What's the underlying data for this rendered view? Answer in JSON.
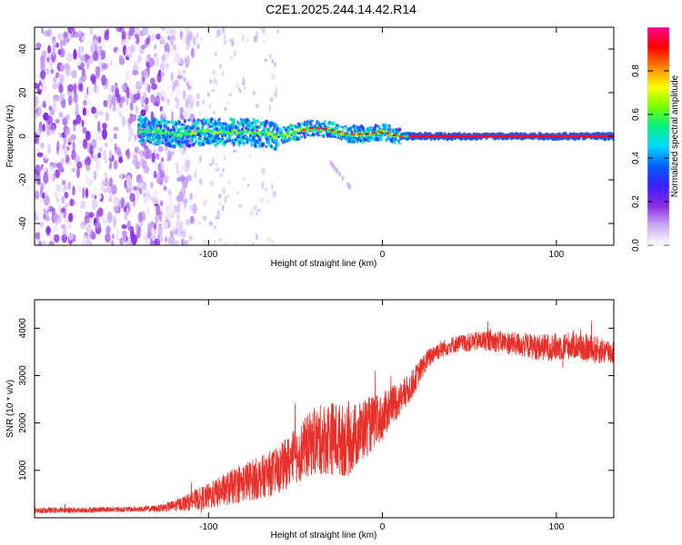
{
  "title": "C2E1.2025.244.14.42.R14",
  "colors": {
    "axis": "#000000",
    "snr_line": "#e8302a",
    "background": "#ffffff"
  },
  "chart_data": [
    {
      "type": "heatmap",
      "name": "spectrogram",
      "xlabel": "Height of straight line (km)",
      "ylabel": "Frequency (Hz)",
      "xlim": [
        -200,
        133
      ],
      "ylim": [
        -50,
        50
      ],
      "xticks": [
        -100,
        0,
        100
      ],
      "yticks": [
        -40,
        -20,
        0,
        20,
        40
      ],
      "colorbar": {
        "label": "Normalized spectral amplitude",
        "range": [
          0.0,
          1.0
        ],
        "ticks": [
          "0.0",
          "0.2",
          "0.4",
          "0.6",
          "0.8"
        ],
        "colormap": [
          "#ffffff",
          "#c9a9f5",
          "#8a2be2",
          "#3a1fff",
          "#0060ff",
          "#00d8ff",
          "#00f080",
          "#7aff00",
          "#ffff00",
          "#ff8000",
          "#ff0000",
          "#ff0090"
        ]
      },
      "features": [
        {
          "description": "broadband noise",
          "x_range": [
            -200,
            -108
          ],
          "freq_range": [
            -50,
            50
          ],
          "amplitude": 0.15
        },
        {
          "description": "faint sparse noise",
          "x_range": [
            -108,
            -60
          ],
          "freq_range": [
            -50,
            50
          ],
          "amplitude": 0.05
        },
        {
          "description": "signal trace",
          "points": [
            [
              -140,
              3
            ],
            [
              -120,
              1
            ],
            [
              -100,
              2
            ],
            [
              -80,
              2
            ],
            [
              -60,
              0
            ],
            [
              -50,
              2
            ],
            [
              -40,
              4
            ],
            [
              -30,
              3
            ],
            [
              -20,
              1
            ],
            [
              -10,
              1
            ],
            [
              0,
              2
            ],
            [
              10,
              0
            ],
            [
              20,
              0
            ],
            [
              60,
              0
            ],
            [
              100,
              0
            ],
            [
              133,
              0
            ]
          ]
        },
        {
          "description": "secondary faint trace",
          "x_range": [
            -30,
            -18
          ],
          "freq_range": [
            -24,
            -12
          ],
          "amplitude": 0.1
        }
      ]
    },
    {
      "type": "line",
      "name": "snr",
      "xlabel": "Height of straight line (km)",
      "ylabel": "SNR (10 * v/v)",
      "xlim": [
        -200,
        133
      ],
      "ylim": [
        0,
        4600
      ],
      "xticks": [
        -100,
        0,
        100
      ],
      "yticks": [
        1000,
        2000,
        3000,
        4000
      ],
      "series": [
        {
          "name": "SNR",
          "x": [
            -200,
            -180,
            -160,
            -140,
            -130,
            -120,
            -110,
            -100,
            -90,
            -80,
            -70,
            -60,
            -50,
            -40,
            -30,
            -20,
            -10,
            0,
            5,
            10,
            15,
            20,
            25,
            30,
            40,
            50,
            60,
            70,
            80,
            90,
            100,
            110,
            120,
            133
          ],
          "y": [
            150,
            160,
            170,
            180,
            190,
            250,
            350,
            450,
            600,
            750,
            850,
            1000,
            1300,
            1600,
            1700,
            1600,
            1900,
            2100,
            2400,
            2500,
            2700,
            3000,
            3300,
            3500,
            3650,
            3700,
            3750,
            3700,
            3650,
            3600,
            3600,
            3650,
            3550,
            3500
          ],
          "noise": [
            60,
            60,
            60,
            60,
            70,
            120,
            200,
            280,
            350,
            420,
            450,
            500,
            600,
            700,
            800,
            750,
            650,
            500,
            450,
            380,
            320,
            260,
            220,
            200,
            180,
            200,
            220,
            240,
            260,
            280,
            300,
            300,
            300,
            280
          ]
        }
      ]
    }
  ]
}
